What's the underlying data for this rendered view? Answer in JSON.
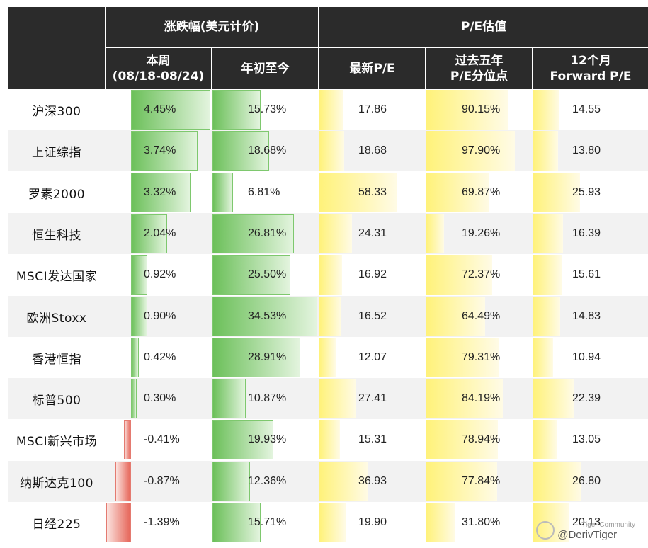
{
  "headers": {
    "group_change": "涨跌幅(美元计价)",
    "group_pe": "P/E估值",
    "week_line1": "本周",
    "week_line2": "(08/18-08/24)",
    "ytd": "年初至今",
    "latest_pe": "最新P/E",
    "pct_line1": "过去五年",
    "pct_line2": "P/E分位点",
    "fwd_line1": "12个月",
    "fwd_line2": "Forward P/E"
  },
  "watermark": {
    "community": "Tiger Community",
    "handle": "@DerivTiger"
  },
  "colors": {
    "header_bg": "#2b2b2b",
    "positive_bar": "#6cc05a",
    "negative_bar": "#e6665a",
    "pe_bar": "#fff27a",
    "row_alt": "#f2f2f2"
  },
  "chart_data": {
    "type": "table",
    "columns": [
      "本周(08/18-08/24)",
      "年初至今",
      "最新P/E",
      "过去五年P/E分位点",
      "12个月Forward P/E"
    ],
    "rows": [
      {
        "name": "沪深300",
        "week": 4.45,
        "ytd": 15.73,
        "pe": 17.86,
        "pct": 90.15,
        "fwd": 14.55,
        "week_label": "4.45%",
        "ytd_label": "15.73%",
        "pe_label": "17.86",
        "pct_label": "90.15%",
        "fwd_label": "14.55"
      },
      {
        "name": "上证综指",
        "week": 3.74,
        "ytd": 18.68,
        "pe": 18.68,
        "pct": 97.9,
        "fwd": 13.8,
        "week_label": "3.74%",
        "ytd_label": "18.68%",
        "pe_label": "18.68",
        "pct_label": "97.90%",
        "fwd_label": "13.80"
      },
      {
        "name": "罗素2000",
        "week": 3.32,
        "ytd": 6.81,
        "pe": 58.33,
        "pct": 69.87,
        "fwd": 25.93,
        "week_label": "3.32%",
        "ytd_label": "6.81%",
        "pe_label": "58.33",
        "pct_label": "69.87%",
        "fwd_label": "25.93"
      },
      {
        "name": "恒生科技",
        "week": 2.04,
        "ytd": 26.81,
        "pe": 24.31,
        "pct": 19.26,
        "fwd": 16.39,
        "week_label": "2.04%",
        "ytd_label": "26.81%",
        "pe_label": "24.31",
        "pct_label": "19.26%",
        "fwd_label": "16.39"
      },
      {
        "name": "MSCI发达国家",
        "week": 0.92,
        "ytd": 25.5,
        "pe": 16.92,
        "pct": 72.37,
        "fwd": 15.61,
        "week_label": "0.92%",
        "ytd_label": "25.50%",
        "pe_label": "16.92",
        "pct_label": "72.37%",
        "fwd_label": "15.61"
      },
      {
        "name": "欧洲Stoxx",
        "week": 0.9,
        "ytd": 34.53,
        "pe": 16.52,
        "pct": 64.49,
        "fwd": 14.83,
        "week_label": "0.90%",
        "ytd_label": "34.53%",
        "pe_label": "16.52",
        "pct_label": "64.49%",
        "fwd_label": "14.83"
      },
      {
        "name": "香港恒指",
        "week": 0.42,
        "ytd": 28.91,
        "pe": 12.07,
        "pct": 79.31,
        "fwd": 10.94,
        "week_label": "0.42%",
        "ytd_label": "28.91%",
        "pe_label": "12.07",
        "pct_label": "79.31%",
        "fwd_label": "10.94"
      },
      {
        "name": "标普500",
        "week": 0.3,
        "ytd": 10.87,
        "pe": 27.41,
        "pct": 84.19,
        "fwd": 22.39,
        "week_label": "0.30%",
        "ytd_label": "10.87%",
        "pe_label": "27.41",
        "pct_label": "84.19%",
        "fwd_label": "22.39"
      },
      {
        "name": "MSCI新兴市场",
        "week": -0.41,
        "ytd": 19.93,
        "pe": 15.31,
        "pct": 78.94,
        "fwd": 13.05,
        "week_label": "-0.41%",
        "ytd_label": "19.93%",
        "pe_label": "15.31",
        "pct_label": "78.94%",
        "fwd_label": "13.05"
      },
      {
        "name": "纳斯达克100",
        "week": -0.87,
        "ytd": 12.36,
        "pe": 36.93,
        "pct": 77.84,
        "fwd": 26.8,
        "week_label": "-0.87%",
        "ytd_label": "12.36%",
        "pe_label": "36.93",
        "pct_label": "77.84%",
        "fwd_label": "26.80"
      },
      {
        "name": "日经225",
        "week": -1.39,
        "ytd": 15.71,
        "pe": 19.9,
        "pct": 31.8,
        "fwd": 20.13,
        "week_label": "-1.39%",
        "ytd_label": "15.71%",
        "pe_label": "19.90",
        "pct_label": "31.80%",
        "fwd_label": "20.13"
      }
    ]
  }
}
